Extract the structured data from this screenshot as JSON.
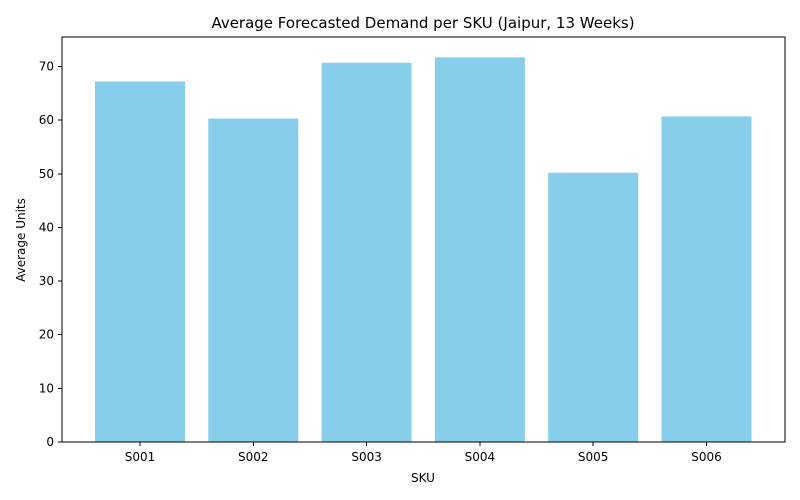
{
  "chart_data": {
    "type": "bar",
    "title": "Average Forecasted Demand per SKU (Jaipur, 13 Weeks)",
    "xlabel": "SKU",
    "ylabel": "Average Units",
    "categories": [
      "S001",
      "S002",
      "S003",
      "S004",
      "S005",
      "S006"
    ],
    "values": [
      67.2,
      60.3,
      70.7,
      71.7,
      50.2,
      60.7
    ],
    "ylim": [
      0,
      75.5
    ],
    "yticks": [
      0,
      10,
      20,
      30,
      40,
      50,
      60,
      70
    ],
    "bar_color": "#87ceeb",
    "grid": false,
    "legend": "none"
  }
}
